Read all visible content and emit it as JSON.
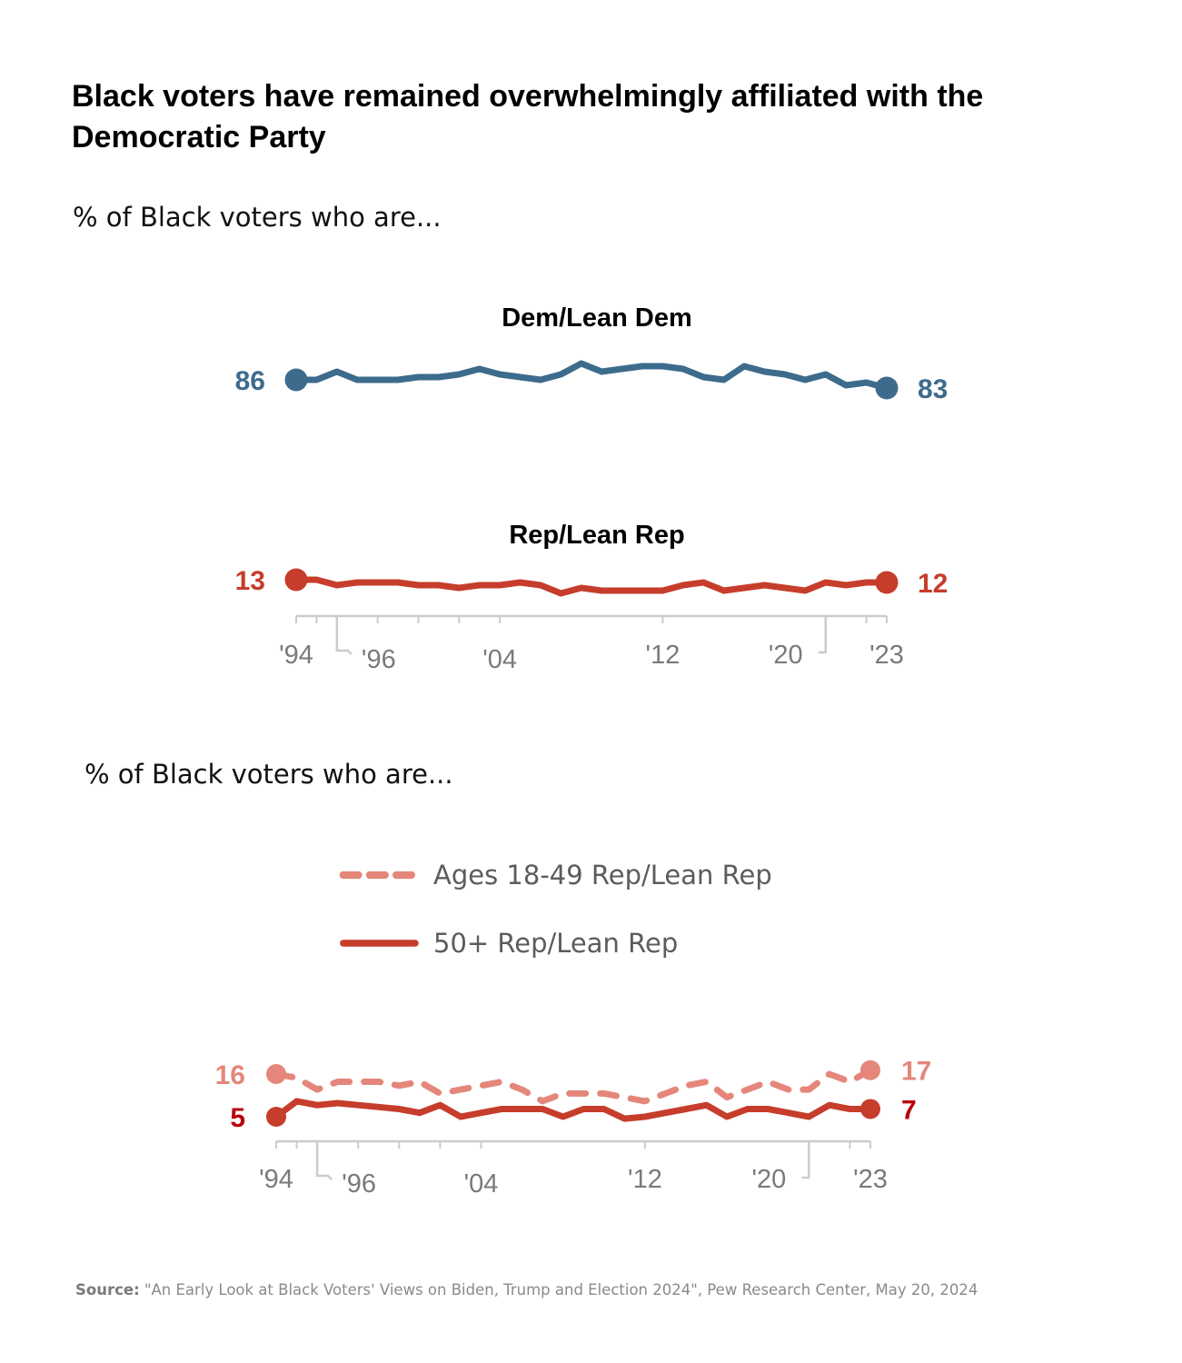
{
  "title": "Black voters have remained overwhelmingly affiliated with the Democratic Party",
  "subtitle_1": "% of Black voters who are...",
  "subtitle_2": "% of Black voters who are...",
  "source": {
    "label": "Source:",
    "text": " \"An Early Look at Black Voters' Views on Biden, Trump and Election 2024\", Pew Research Center, May 20, 2024"
  },
  "legend": {
    "dashed": "Ages 18-49 Rep/Lean Rep",
    "solid": "50+ Rep/Lean Rep"
  },
  "colors": {
    "dem": "#3d6b8c",
    "rep": "#c63d2b",
    "rep_young": "#e4877a",
    "rep_old_label": "#b8000a",
    "axis": "#cccccc",
    "tick_label": "#7a7a7a"
  },
  "chart_data": [
    {
      "type": "line",
      "title": "Party affiliation of Black voters",
      "x": [
        "1994",
        "1995",
        "1996",
        "1997",
        "1998",
        "1999",
        "2000",
        "2001",
        "2002",
        "2003",
        "2004",
        "2005",
        "2006",
        "2007",
        "2008",
        "2009",
        "2010",
        "2011",
        "2012",
        "2013",
        "2014",
        "2015",
        "2016",
        "2017",
        "2018",
        "2019",
        "2020",
        "2021",
        "2022",
        "2023"
      ],
      "x_tick_labels": [
        {
          "x": "1994",
          "label": "'94"
        },
        {
          "x": "1996",
          "label": "'96"
        },
        {
          "x": "2004",
          "label": "'04"
        },
        {
          "x": "2012",
          "label": "'12"
        },
        {
          "x": "2020",
          "label": "'20"
        },
        {
          "x": "2023",
          "label": "'23"
        }
      ],
      "series": [
        {
          "name": "Dem/Lean Dem",
          "values": [
            86,
            86,
            89,
            86,
            86,
            86,
            87,
            87,
            88,
            90,
            88,
            87,
            86,
            88,
            92,
            89,
            90,
            91,
            91,
            90,
            87,
            86,
            91,
            89,
            88,
            86,
            88,
            84,
            85,
            83
          ],
          "start_label": "86",
          "end_label": "83"
        },
        {
          "name": "Rep/Lean Rep",
          "values": [
            13,
            13,
            11,
            12,
            12,
            12,
            11,
            11,
            10,
            11,
            11,
            12,
            11,
            8,
            10,
            9,
            9,
            9,
            9,
            11,
            12,
            9,
            10,
            11,
            10,
            9,
            12,
            11,
            12,
            12
          ],
          "start_label": "13",
          "end_label": "12"
        }
      ],
      "ylabel": "",
      "xlabel": "",
      "grid": false
    },
    {
      "type": "line",
      "title": "Rep/Lean Rep by age",
      "x": [
        "1994",
        "1995",
        "1996",
        "1997",
        "1998",
        "1999",
        "2000",
        "2001",
        "2002",
        "2003",
        "2004",
        "2005",
        "2006",
        "2007",
        "2008",
        "2009",
        "2010",
        "2011",
        "2012",
        "2013",
        "2014",
        "2015",
        "2016",
        "2017",
        "2018",
        "2019",
        "2020",
        "2021",
        "2022",
        "2023"
      ],
      "x_tick_labels": [
        {
          "x": "1994",
          "label": "'94"
        },
        {
          "x": "1996",
          "label": "'96"
        },
        {
          "x": "2004",
          "label": "'04"
        },
        {
          "x": "2012",
          "label": "'12"
        },
        {
          "x": "2020",
          "label": "'20"
        },
        {
          "x": "2023",
          "label": "'23"
        }
      ],
      "series": [
        {
          "name": "Ages 18-49 Rep/Lean Rep",
          "style": "dashed",
          "values": [
            16,
            15,
            12,
            14,
            14,
            14,
            13,
            14,
            11,
            12,
            13,
            14,
            12,
            9,
            11,
            11,
            11,
            10,
            9,
            11,
            13,
            14,
            10,
            12,
            14,
            12,
            12,
            16,
            14,
            17
          ],
          "start_label": "16",
          "end_label": "17"
        },
        {
          "name": "50+ Rep/Lean Rep",
          "style": "solid",
          "values": [
            5,
            9,
            8,
            8.5,
            8,
            7.5,
            7,
            6,
            8,
            5,
            6,
            7,
            7,
            7,
            5,
            7,
            7,
            4.5,
            5,
            6,
            7,
            8,
            5,
            7,
            7,
            6,
            5,
            8,
            7,
            7
          ],
          "start_label": "5",
          "end_label": "7"
        }
      ],
      "ylabel": "",
      "xlabel": "",
      "grid": false
    }
  ]
}
